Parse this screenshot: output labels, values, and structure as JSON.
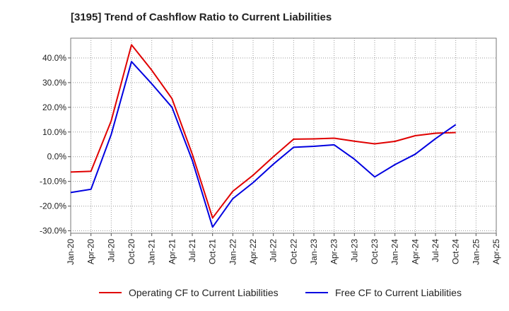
{
  "chart_data": {
    "type": "line",
    "title": "[3195]  Trend of Cashflow Ratio to Current Liabilities",
    "xlabel": "",
    "ylabel": "",
    "x_ticks": [
      "Jan-20",
      "Apr-20",
      "Jul-20",
      "Oct-20",
      "Jan-21",
      "Apr-21",
      "Jul-21",
      "Oct-21",
      "Jan-22",
      "Apr-22",
      "Jul-22",
      "Oct-22",
      "Jan-23",
      "Apr-23",
      "Jul-23",
      "Oct-23",
      "Jan-24",
      "Apr-24",
      "Jul-24",
      "Oct-24",
      "Jan-25",
      "Apr-25"
    ],
    "y_ticks": [
      40,
      30,
      20,
      10,
      0,
      -10,
      -20,
      -30
    ],
    "y_tick_labels": [
      "40.0%",
      "30.0%",
      "20.0%",
      "10.0%",
      "0.0%",
      "-10.0%",
      "-20.0%",
      "-30.0%"
    ],
    "ylim": [
      -31,
      48
    ],
    "grid": true,
    "legend_position": "bottom",
    "series": [
      {
        "name": "Operating CF to Current Liabilities",
        "color": "#e00000",
        "x": [
          "Jan-20",
          "Apr-20",
          "Jul-20",
          "Oct-20",
          "Jan-21",
          "Apr-21",
          "Jul-21",
          "Oct-21",
          "Jan-22",
          "Apr-22",
          "Jul-22",
          "Oct-22",
          "Jan-23",
          "Apr-23",
          "Jul-23",
          "Oct-23",
          "Jan-24",
          "Apr-24",
          "Jul-24",
          "Oct-24"
        ],
        "values": [
          -6.2,
          -5.9,
          14.5,
          45.3,
          35.0,
          23.5,
          1.0,
          -24.8,
          -14.0,
          -7.5,
          0.0,
          7.1,
          7.2,
          7.5,
          6.3,
          5.2,
          6.2,
          8.5,
          9.5,
          9.8
        ]
      },
      {
        "name": "Free CF to Current Liabilities",
        "color": "#0000e0",
        "x": [
          "Jan-20",
          "Apr-20",
          "Jul-20",
          "Oct-20",
          "Jan-21",
          "Apr-21",
          "Jul-21",
          "Oct-21",
          "Jan-22",
          "Apr-22",
          "Jul-22",
          "Oct-22",
          "Jan-23",
          "Apr-23",
          "Jul-23",
          "Oct-23",
          "Jan-24",
          "Apr-24",
          "Jul-24",
          "Oct-24"
        ],
        "values": [
          -14.5,
          -13.2,
          9.0,
          38.5,
          29.5,
          20.0,
          -1.5,
          -28.5,
          -17.0,
          -10.5,
          -3.0,
          3.8,
          4.2,
          4.8,
          -1.0,
          -8.2,
          -3.2,
          1.0,
          7.3,
          13.0
        ]
      }
    ]
  }
}
